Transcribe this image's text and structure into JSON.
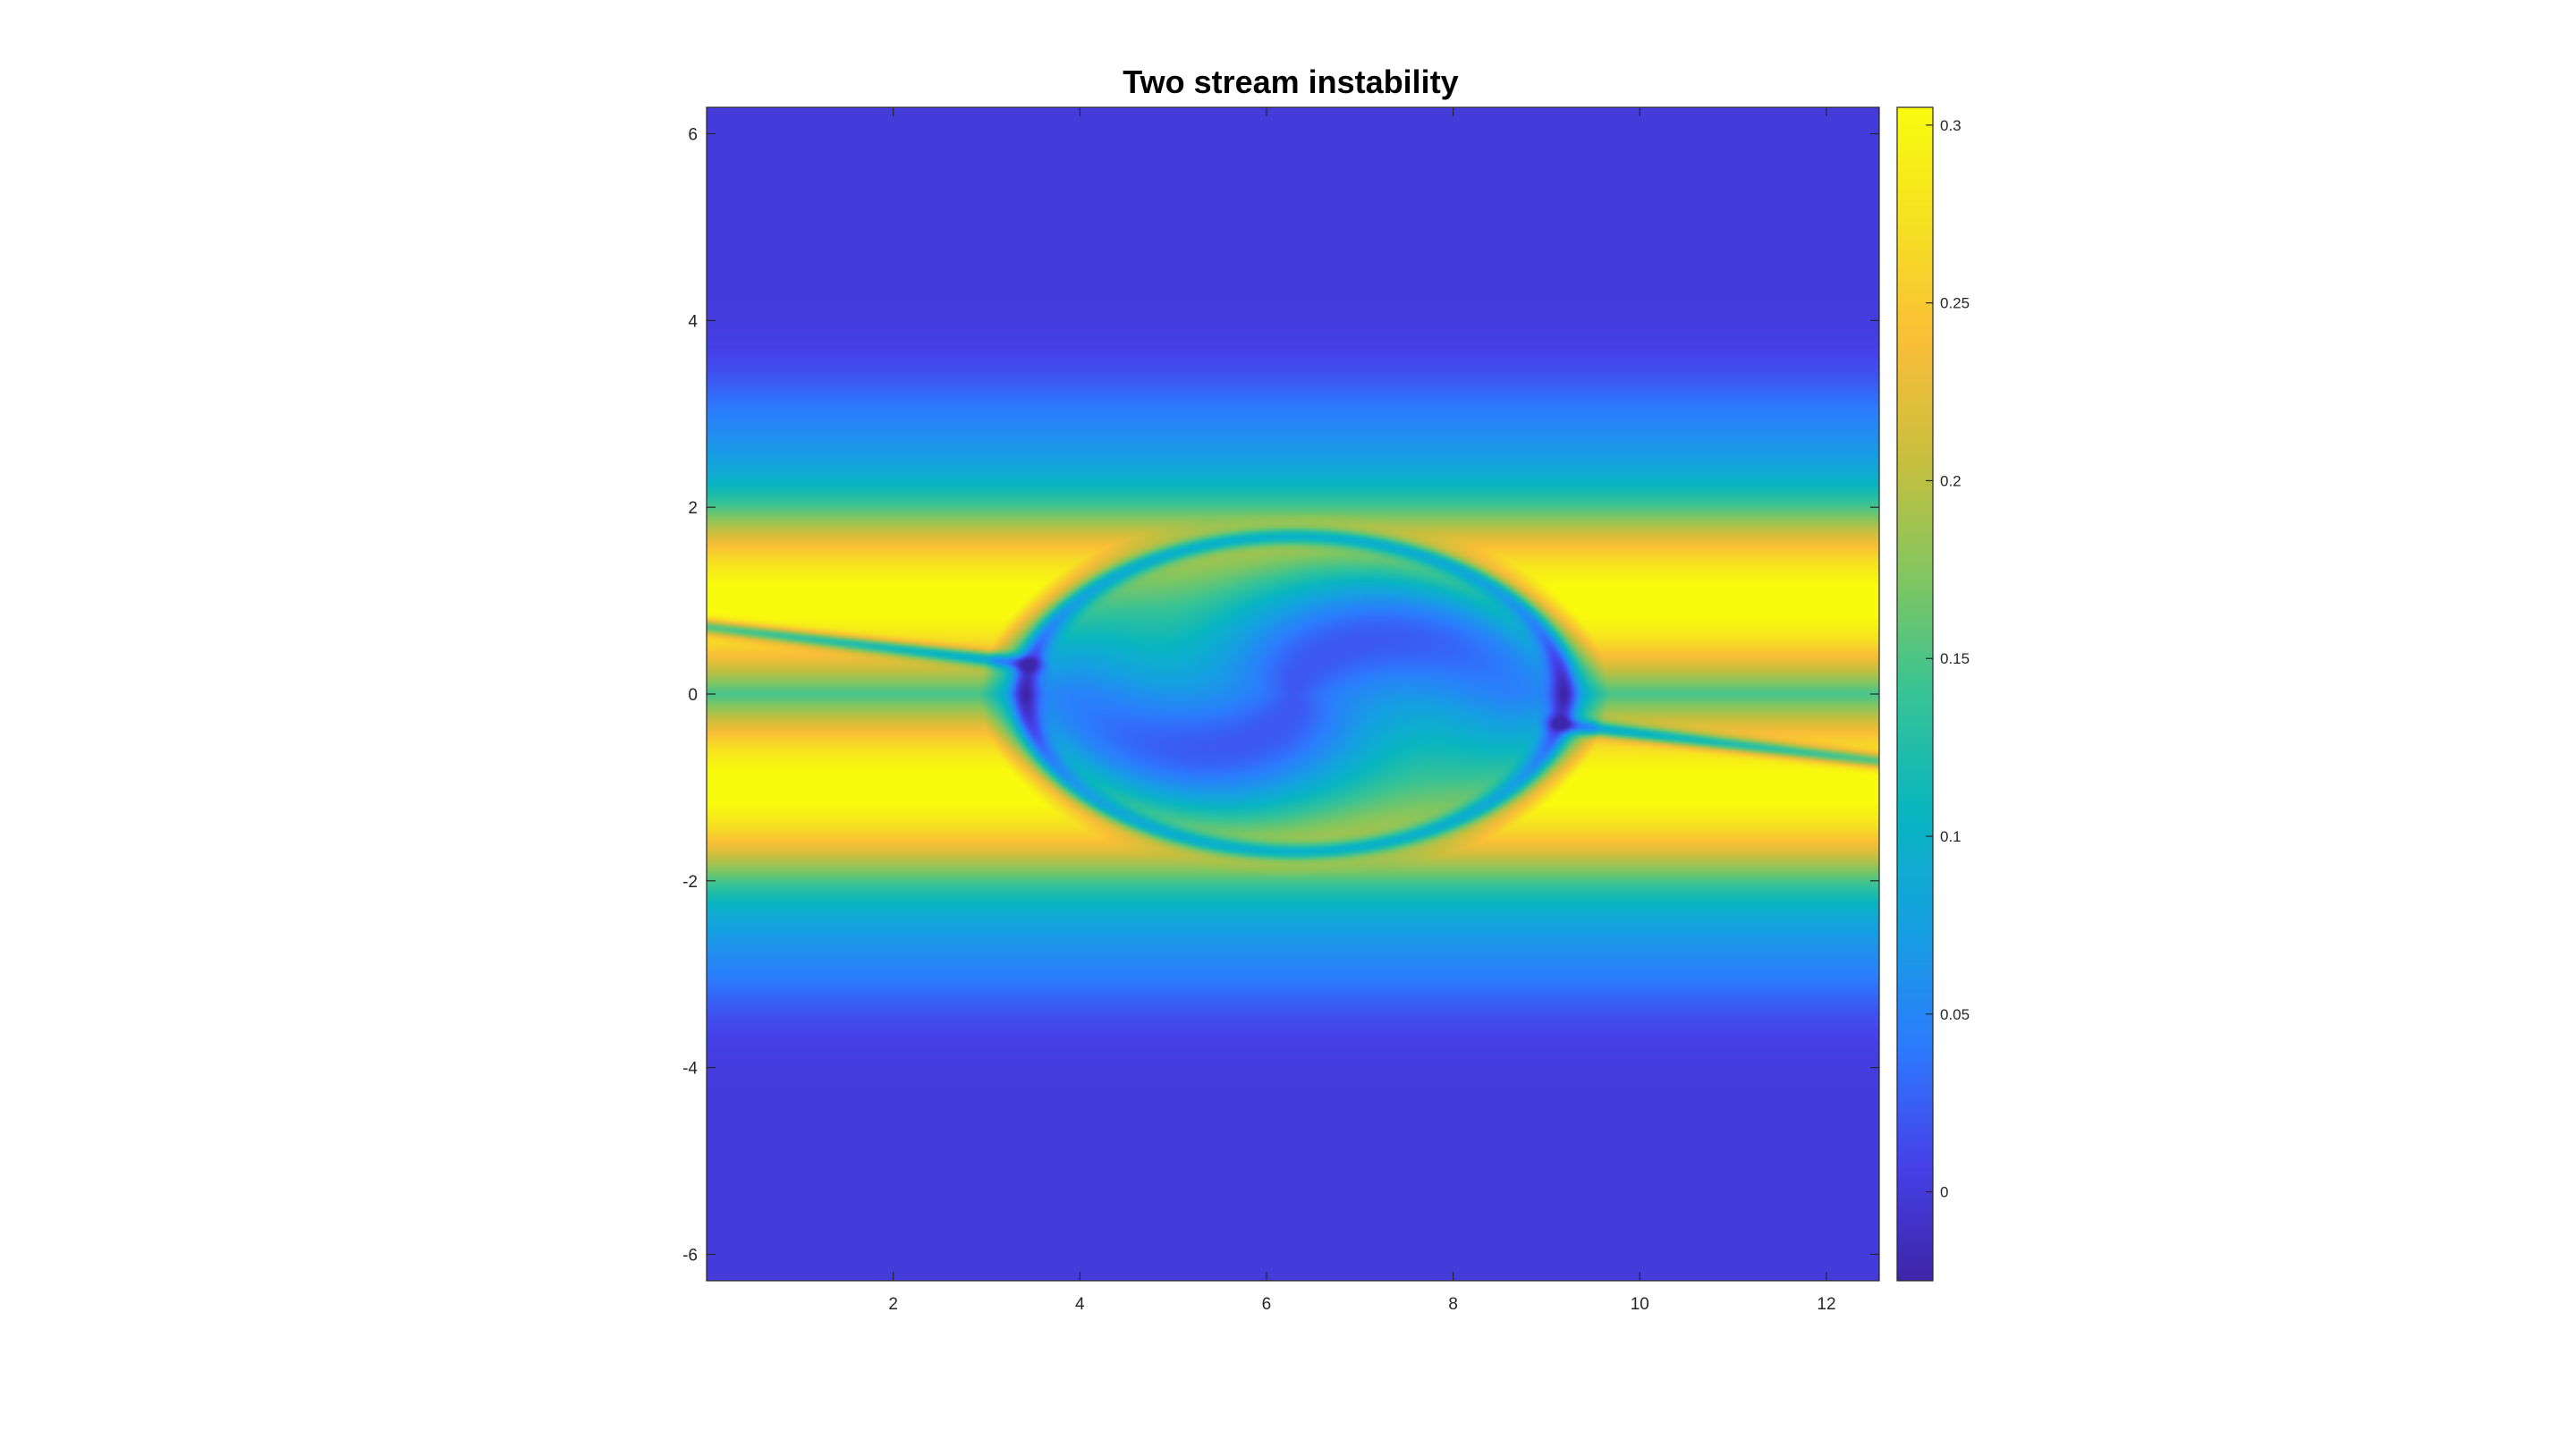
{
  "chart_data": {
    "type": "heatmap",
    "title": "Two stream instability",
    "xlabel": "",
    "ylabel": "",
    "xlim": [
      0,
      12.566
    ],
    "ylim": [
      -6.283,
      6.283
    ],
    "x_ticks": [
      "2",
      "4",
      "6",
      "8",
      "10",
      "12"
    ],
    "y_ticks": [
      "-6",
      "-4",
      "-2",
      "0",
      "2",
      "4",
      "6"
    ],
    "colorbar": {
      "lim": [
        -0.025,
        0.305
      ],
      "ticks": [
        "0",
        "0.05",
        "0.1",
        "0.15",
        "0.2",
        "0.25",
        "0.3"
      ],
      "colormap": "parula"
    },
    "field": {
      "description": "phase-space density f(x, v) showing a vortex (trapped particle hole) centered near x=6.3, v=0",
      "min_value": -0.02,
      "max_value": 0.305,
      "vortex_center": [
        6.3,
        0
      ],
      "filament_band_peak_v": 1.3
    }
  },
  "colors": {
    "low": "#3e26a8",
    "mid": "#17b4bd",
    "high": "#f9fb0e",
    "axis": "#262626"
  }
}
